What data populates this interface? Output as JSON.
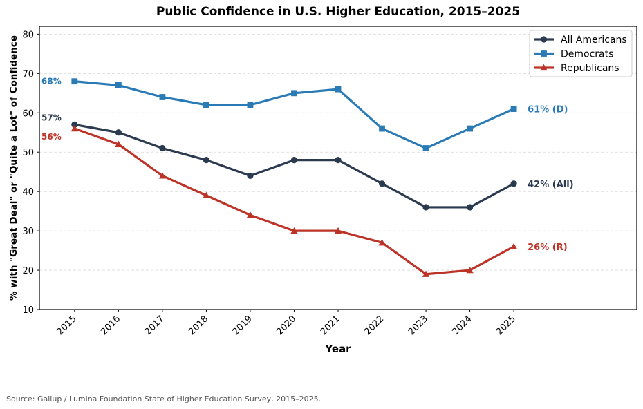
{
  "chart_data": {
    "type": "line",
    "title": "Public Confidence in U.S. Higher Education, 2015–2025",
    "xlabel": "Year",
    "ylabel": "% with \"Great Deal\" or \"Quite a Lot\" of Confidence",
    "x": [
      2015,
      2016,
      2017,
      2018,
      2019,
      2020,
      2021,
      2022,
      2023,
      2024,
      2025
    ],
    "x_tick_labels": [
      "2015",
      "2016",
      "2017",
      "2018",
      "2019",
      "2020",
      "2021",
      "2022",
      "2023",
      "2024",
      "2025"
    ],
    "xlim": [
      2014.2,
      2027.8
    ],
    "ylim": [
      10,
      82
    ],
    "yticks": [
      10,
      20,
      30,
      40,
      50,
      60,
      70,
      80
    ],
    "grid": "horizontal-dashed",
    "legend_position": "top-right",
    "series": [
      {
        "name": "All Americans",
        "color": "#2b3a4f",
        "marker": "circle",
        "values": [
          57,
          55,
          51,
          48,
          44,
          48,
          48,
          42,
          36,
          36,
          42
        ],
        "start_label": "57%",
        "end_label": "42% (All)"
      },
      {
        "name": "Democrats",
        "color": "#2a7ab5",
        "marker": "square",
        "values": [
          68,
          67,
          64,
          62,
          62,
          65,
          66,
          56,
          51,
          56,
          61
        ],
        "start_label": "68%",
        "end_label": "61% (D)"
      },
      {
        "name": "Republicans",
        "color": "#bc3327",
        "marker": "triangle",
        "values": [
          56,
          52,
          44,
          39,
          34,
          30,
          30,
          27,
          19,
          20,
          26
        ],
        "start_label": "56%",
        "end_label": "26% (R)"
      }
    ]
  },
  "source_note": "Source: Gallup / Lumina Foundation State of Higher Education Survey, 2015–2025."
}
